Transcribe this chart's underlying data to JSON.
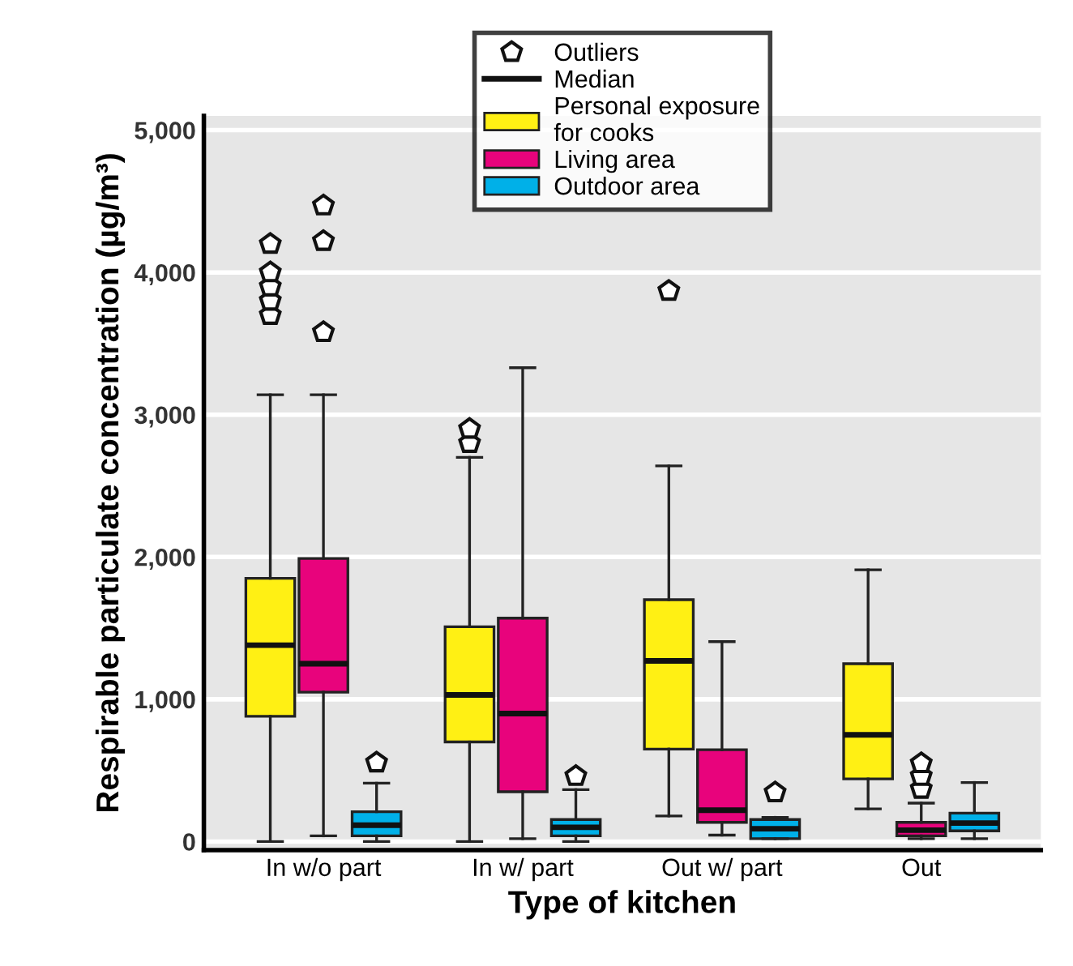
{
  "chart_data": {
    "type": "box",
    "xlabel": "Type of kitchen",
    "ylabel": "Respirable particulate concentration (µg/m³)",
    "categories": [
      "In w/o part",
      "In w/ part",
      "Out w/ part",
      "Out"
    ],
    "ylim": [
      -60,
      5100
    ],
    "yticks": [
      {
        "value": 0,
        "label": "0"
      },
      {
        "value": 1000,
        "label": "1,000"
      },
      {
        "value": 2000,
        "label": "2,000"
      },
      {
        "value": 3000,
        "label": "3,000"
      },
      {
        "value": 4000,
        "label": "4,000"
      },
      {
        "value": 5000,
        "label": "5,000"
      }
    ],
    "grid": "y",
    "legend": "top",
    "annotations": [
      "Outliers",
      "Median"
    ],
    "series": [
      {
        "name": "Personal exposure\nfor cooks",
        "color": "#fff014",
        "boxes": [
          {
            "low": 0,
            "q1": 880,
            "median": 1380,
            "q3": 1850,
            "high": 3140,
            "outliers": [
              3700,
              3800,
              3900,
              4000,
              4200
            ]
          },
          {
            "low": 0,
            "q1": 700,
            "median": 1030,
            "q3": 1510,
            "high": 2700,
            "outliers": [
              2800,
              2900
            ]
          },
          {
            "low": 180,
            "q1": 650,
            "median": 1270,
            "q3": 1700,
            "high": 2640,
            "outliers": [
              3870
            ]
          },
          {
            "low": 230,
            "q1": 440,
            "median": 750,
            "q3": 1250,
            "high": 1910
          }
        ]
      },
      {
        "name": "Living area",
        "color": "#e8037c",
        "boxes": [
          {
            "low": 40,
            "q1": 1050,
            "median": 1250,
            "q3": 1990,
            "high": 3140,
            "outliers": [
              3580,
              4220,
              4470
            ]
          },
          {
            "low": 20,
            "q1": 350,
            "median": 900,
            "q3": 1570,
            "high": 3330
          },
          {
            "low": 45,
            "q1": 135,
            "median": 220,
            "q3": 645,
            "high": 1405
          },
          {
            "low": 20,
            "q1": 40,
            "median": 80,
            "q3": 135,
            "high": 270,
            "outliers": [
              370,
              460,
              550
            ]
          }
        ]
      },
      {
        "name": "Outdoor area",
        "color": "#00b0e8",
        "boxes": [
          {
            "low": 0,
            "q1": 40,
            "median": 115,
            "q3": 210,
            "high": 410,
            "outliers": [
              555
            ]
          },
          {
            "low": 0,
            "q1": 40,
            "median": 100,
            "q3": 155,
            "high": 365,
            "outliers": [
              460
            ]
          },
          {
            "low": 20,
            "q1": 20,
            "median": 90,
            "q3": 155,
            "high": 170,
            "outliers": [
              345
            ]
          },
          {
            "low": 20,
            "q1": 75,
            "median": 130,
            "q3": 200,
            "high": 415
          }
        ]
      }
    ]
  }
}
